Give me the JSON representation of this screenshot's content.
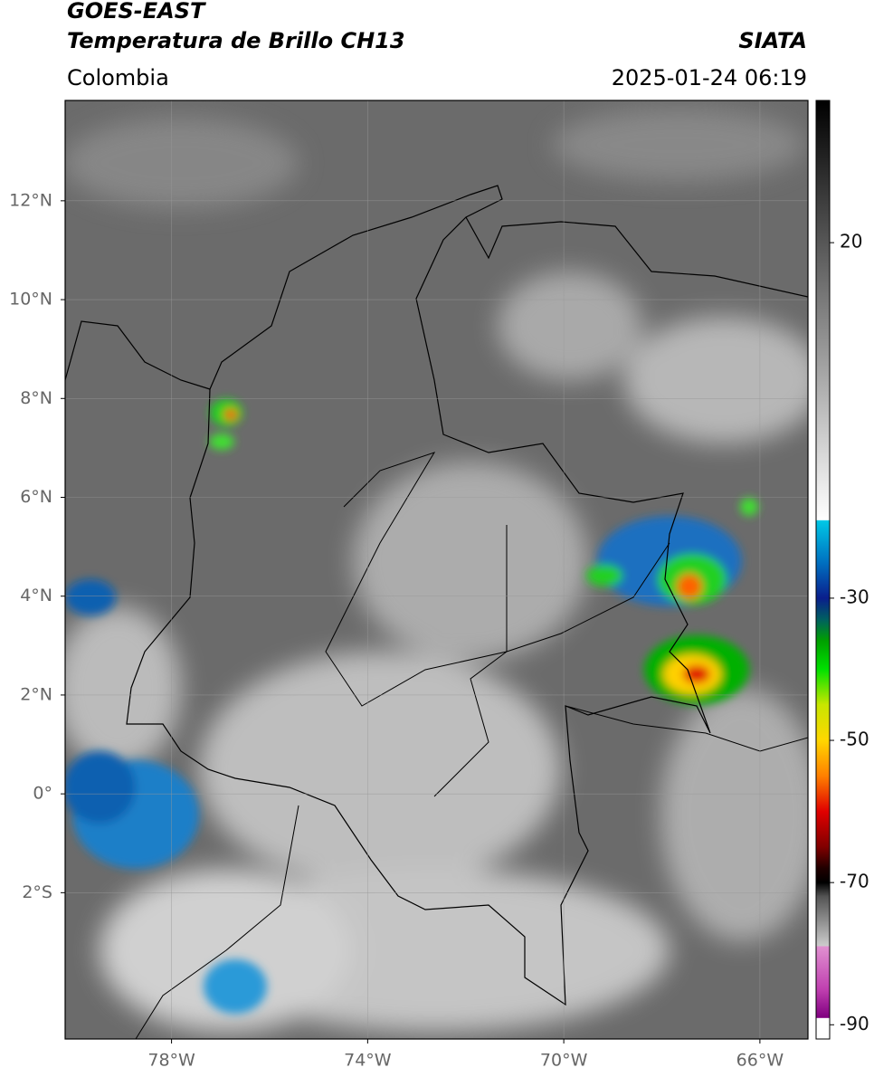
{
  "header": {
    "title": "GOES-EAST",
    "subtitle": "Temperatura de Brillo CH13",
    "source": "SIATA",
    "region": "Colombia",
    "datetime": "2025-01-24 06:19"
  },
  "map": {
    "xlim": [
      -80.17,
      -65.02
    ],
    "ylim": [
      -4.96,
      14.03
    ],
    "grid": true,
    "xticks": [
      {
        "value": -78,
        "label": "78°W"
      },
      {
        "value": -74,
        "label": "74°W"
      },
      {
        "value": -70,
        "label": "70°W"
      },
      {
        "value": -66,
        "label": "66°W"
      }
    ],
    "yticks": [
      {
        "value": 12,
        "label": "12°N"
      },
      {
        "value": 10,
        "label": "10°N"
      },
      {
        "value": 8,
        "label": "8°N"
      },
      {
        "value": 6,
        "label": "6°N"
      },
      {
        "value": 4,
        "label": "4°N"
      },
      {
        "value": 2,
        "label": "2°N"
      },
      {
        "value": 0,
        "label": "0°"
      },
      {
        "value": -2,
        "label": "2°S"
      }
    ]
  },
  "colorbar": {
    "range": [
      -92,
      40
    ],
    "ticks": [
      20,
      -30,
      -50,
      -70,
      -90
    ],
    "colormap": [
      {
        "value": 40,
        "color": "#000000"
      },
      {
        "value": -19,
        "color": "#ffffff"
      },
      {
        "value": -19.1,
        "color": "#00c8e6"
      },
      {
        "value": -25,
        "color": "#0070c0"
      },
      {
        "value": -30,
        "color": "#0a1e8c"
      },
      {
        "value": -33,
        "color": "#006060"
      },
      {
        "value": -36,
        "color": "#00a000"
      },
      {
        "value": -40,
        "color": "#00e000"
      },
      {
        "value": -45,
        "color": "#c8e600"
      },
      {
        "value": -50,
        "color": "#ffd700"
      },
      {
        "value": -55,
        "color": "#ff8000"
      },
      {
        "value": -60,
        "color": "#e00000"
      },
      {
        "value": -65,
        "color": "#800000"
      },
      {
        "value": -68,
        "color": "#200000"
      },
      {
        "value": -70,
        "color": "#000000"
      },
      {
        "value": -72,
        "color": "#555555"
      },
      {
        "value": -76,
        "color": "#999999"
      },
      {
        "value": -78.9,
        "color": "#cccccc"
      },
      {
        "value": -79,
        "color": "#e090d0"
      },
      {
        "value": -85,
        "color": "#c040b0"
      },
      {
        "value": -89,
        "color": "#800080"
      },
      {
        "value": -89.1,
        "color": "#ffffff"
      },
      {
        "value": -92,
        "color": "#ffffff"
      }
    ]
  }
}
